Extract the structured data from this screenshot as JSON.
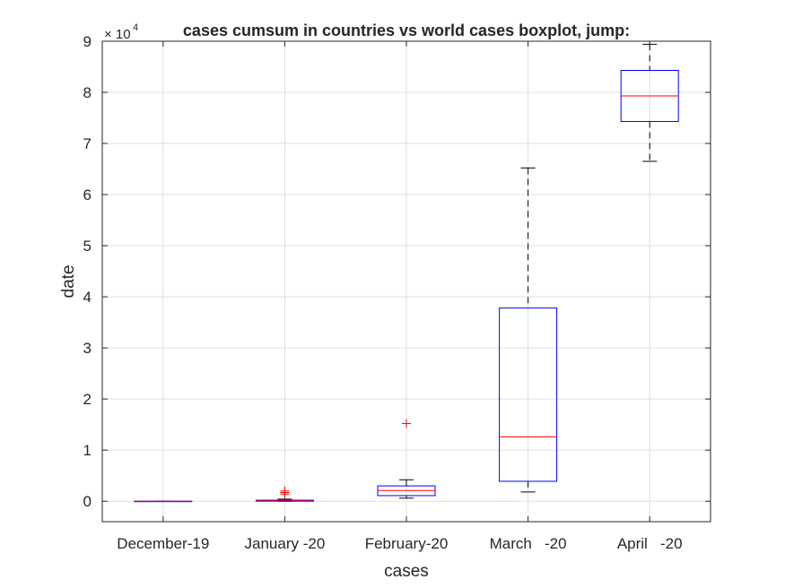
{
  "chart_data": {
    "type": "boxplot",
    "title": "cases cumsum in countries vs world cases boxplot, jump:",
    "xlabel": "cases",
    "ylabel": "date",
    "y_exponent_label": "× 10",
    "y_exponent": "4",
    "categories": [
      "December-19",
      "January -20",
      "February-20",
      "March   -20",
      "April   -20"
    ],
    "ylim": [
      -4000,
      90000
    ],
    "yticks": [
      0,
      10000,
      20000,
      30000,
      40000,
      50000,
      60000,
      70000,
      80000,
      90000
    ],
    "ytick_labels": [
      "0",
      "1",
      "2",
      "3",
      "4",
      "5",
      "6",
      "7",
      "8",
      "9"
    ],
    "grid": true,
    "boxes": [
      {
        "category": "December-19",
        "whisker_low": 0,
        "q1": 0,
        "median": 0,
        "q3": 0,
        "whisker_high": 0,
        "outliers": []
      },
      {
        "category": "January -20",
        "whisker_low": 0,
        "q1": 0,
        "median": 50,
        "q3": 200,
        "whisker_high": 400,
        "outliers": [
          1400,
          1700,
          2000
        ]
      },
      {
        "category": "February-20",
        "whisker_low": 600,
        "q1": 1100,
        "median": 2100,
        "q3": 3000,
        "whisker_high": 4200,
        "outliers": [
          15200
        ]
      },
      {
        "category": "March   -20",
        "whisker_low": 1800,
        "q1": 3900,
        "median": 12600,
        "q3": 37800,
        "whisker_high": 65200,
        "outliers": []
      },
      {
        "category": "April   -20",
        "whisker_low": 66500,
        "q1": 74300,
        "median": 79300,
        "q3": 84300,
        "whisker_high": 89400,
        "outliers": []
      }
    ],
    "colors": {
      "box": "#0000ff",
      "median": "#ff0000",
      "whisker": "#000000",
      "outlier": "#ff0000",
      "grid": "#dfdfdf",
      "axis": "#262626"
    }
  }
}
